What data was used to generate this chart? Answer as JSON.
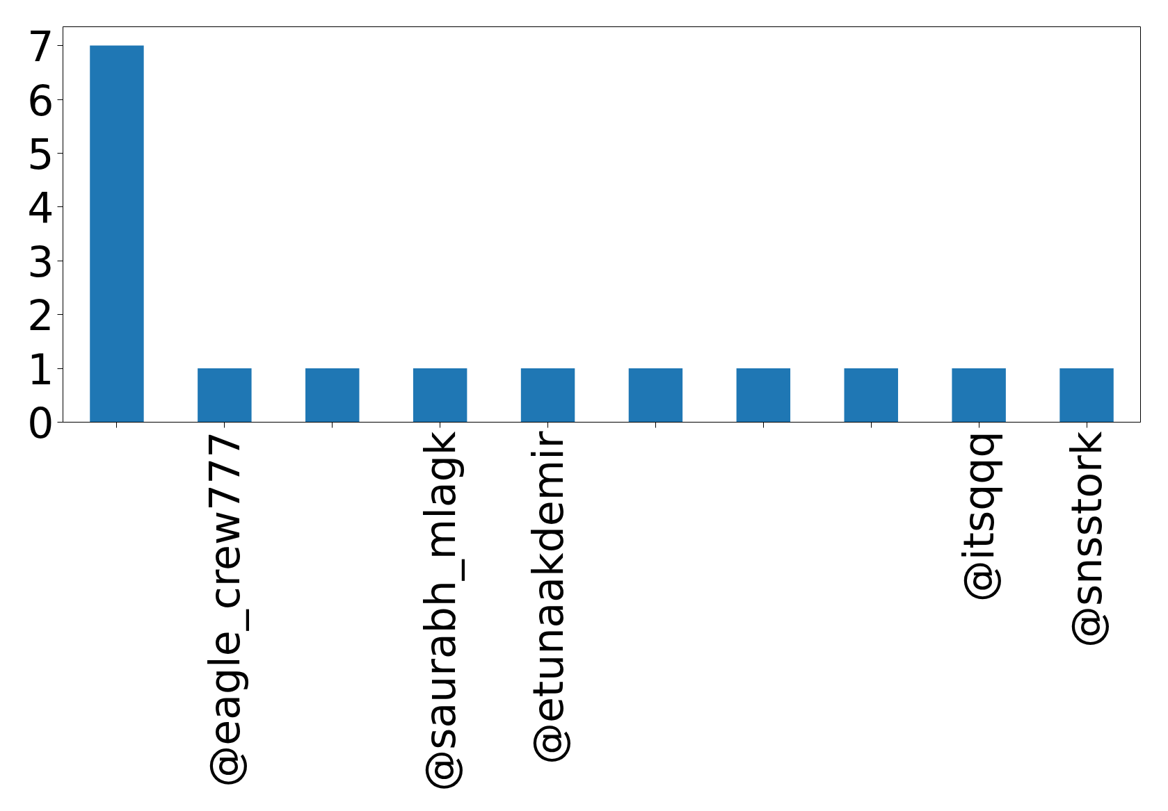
{
  "chart_data": {
    "type": "bar",
    "categories": [
      null,
      "@eagle_crew777",
      null,
      "@saurabh_mlagk",
      "@etunaakdemir",
      null,
      null,
      null,
      "@itsqqq",
      "@snsstork"
    ],
    "values": [
      7,
      1,
      1,
      1,
      1,
      1,
      1,
      1,
      1,
      1
    ],
    "color": "#1f77b4",
    "ylim": [
      0,
      7.35
    ],
    "yticks": [
      0,
      1,
      2,
      3,
      4,
      5,
      6,
      7
    ],
    "grid": false
  }
}
